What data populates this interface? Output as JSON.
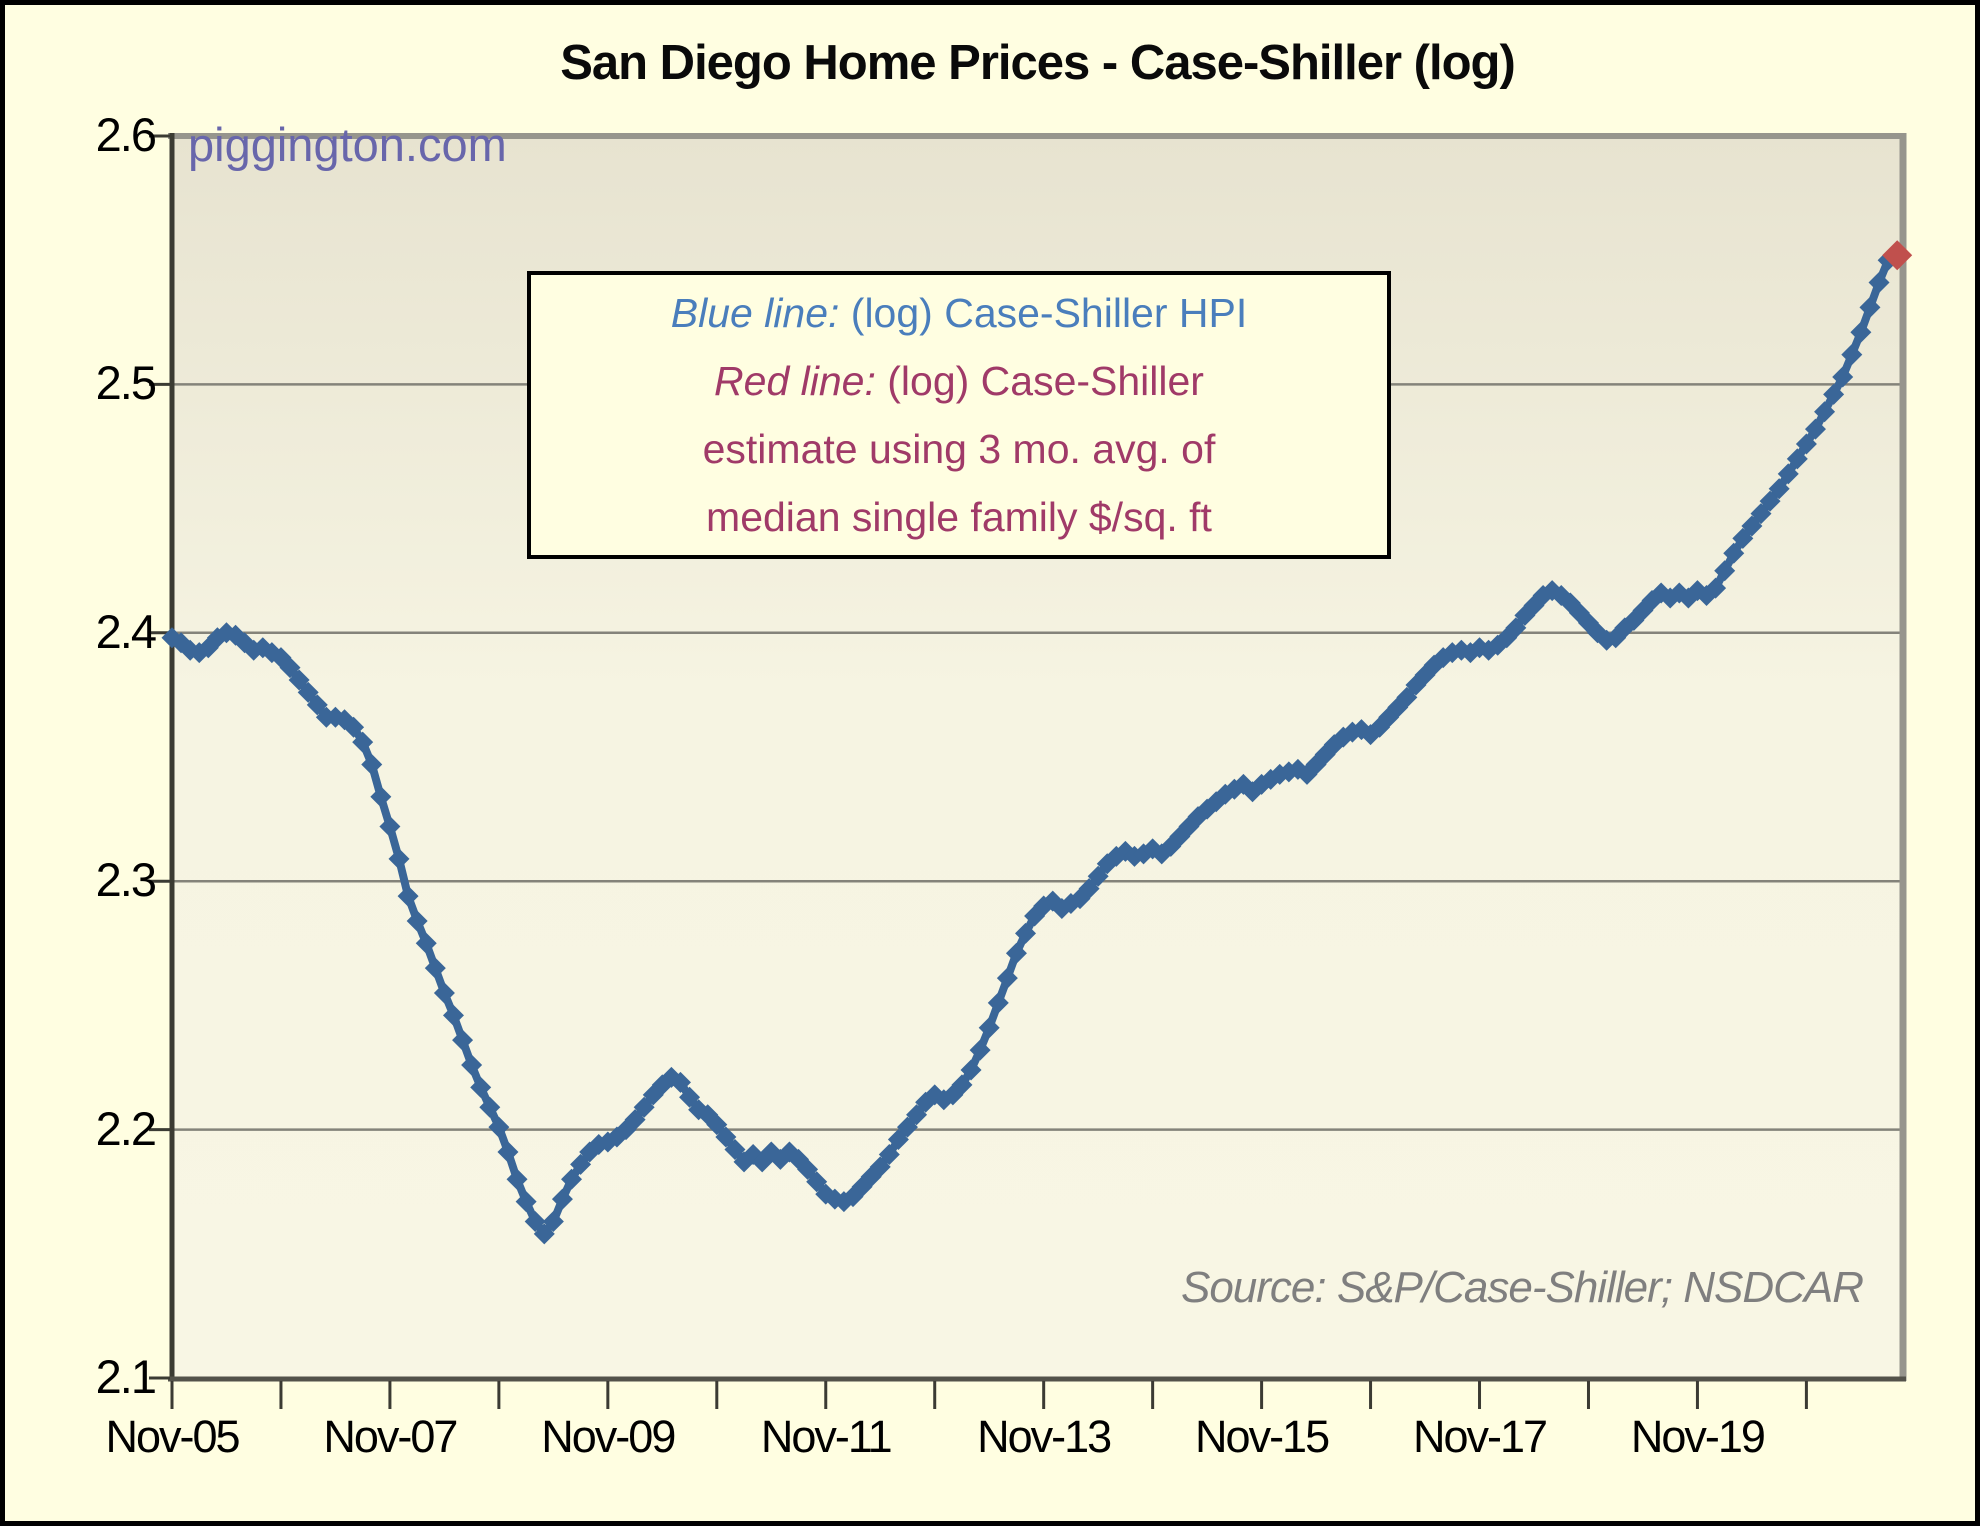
{
  "title": "San Diego Home Prices - Case-Shiller (log)",
  "watermark": "piggington.com",
  "source_note": "Source: S&P/Case-Shiller; NSDCAR",
  "legend": {
    "blue_label": "Blue line:",
    "blue_text": " (log) Case-Shiller HPI",
    "red_label": "Red line:",
    "red_text": " (log) Case-Shiller",
    "red_line2": "estimate using 3 mo. avg. of",
    "red_line3": "median single family $/sq. ft"
  },
  "colors": {
    "page_bg": "#fffee1",
    "plot_bg_top": "#e7e3d0",
    "plot_bg_mid": "#f6f4e2",
    "plot_bg_bottom": "#f8f6e4",
    "grid": "#84837a",
    "axis_dark": "#3b3b33",
    "axis_light": "#96958d",
    "axis_bottom": "#53524a",
    "blue_line": "#3a6698",
    "red_marker": "#c0504d",
    "blue_text": "#4a7ebc",
    "red_text": "#a03a68",
    "watermark": "#6866ab",
    "source": "#7f7f7f"
  },
  "chart_data": {
    "type": "line",
    "title": "San Diego Home Prices - Case-Shiller (log)",
    "xlabel": "",
    "ylabel": "",
    "ylim": [
      2.1,
      2.6
    ],
    "y_ticks": [
      2.6,
      2.5,
      2.4,
      2.3,
      2.2,
      2.1
    ],
    "grid": "horizontal",
    "x_unit": "months since Nov-2005",
    "x_minor_tick_months": [
      0,
      12,
      24,
      36,
      48,
      60,
      72,
      84,
      96,
      108,
      120,
      132,
      144,
      156,
      168,
      180
    ],
    "x_label_months": [
      0,
      24,
      48,
      72,
      96,
      120,
      144,
      168
    ],
    "x_tick_labels": [
      "Nov-05",
      "Nov-07",
      "Nov-09",
      "Nov-11",
      "Nov-13",
      "Nov-15",
      "Nov-17",
      "Nov-19"
    ],
    "legend_position": "top-center-box",
    "series": [
      {
        "name": "(log) Case-Shiller HPI",
        "color": "#3a6698",
        "marker": "diamond",
        "start_month": 0,
        "values": [
          2.398,
          2.396,
          2.393,
          2.392,
          2.394,
          2.398,
          2.4,
          2.399,
          2.396,
          2.393,
          2.394,
          2.392,
          2.39,
          2.386,
          2.381,
          2.376,
          2.371,
          2.366,
          2.366,
          2.365,
          2.362,
          2.356,
          2.347,
          2.334,
          2.322,
          2.309,
          2.294,
          2.284,
          2.275,
          2.265,
          2.255,
          2.246,
          2.236,
          2.226,
          2.217,
          2.209,
          2.201,
          2.191,
          2.18,
          2.171,
          2.163,
          2.158,
          2.163,
          2.172,
          2.18,
          2.186,
          2.191,
          2.194,
          2.195,
          2.197,
          2.2,
          2.204,
          2.209,
          2.214,
          2.218,
          2.221,
          2.219,
          2.213,
          2.208,
          2.206,
          2.202,
          2.197,
          2.192,
          2.187,
          2.19,
          2.187,
          2.191,
          2.188,
          2.191,
          2.188,
          2.184,
          2.179,
          2.174,
          2.172,
          2.171,
          2.173,
          2.177,
          2.181,
          2.185,
          2.19,
          2.196,
          2.201,
          2.206,
          2.211,
          2.214,
          2.212,
          2.214,
          2.218,
          2.224,
          2.232,
          2.241,
          2.251,
          2.261,
          2.271,
          2.279,
          2.286,
          2.29,
          2.292,
          2.289,
          2.291,
          2.293,
          2.297,
          2.302,
          2.307,
          2.31,
          2.312,
          2.31,
          2.311,
          2.313,
          2.311,
          2.314,
          2.318,
          2.322,
          2.326,
          2.329,
          2.332,
          2.335,
          2.337,
          2.339,
          2.336,
          2.339,
          2.341,
          2.343,
          2.344,
          2.345,
          2.343,
          2.347,
          2.351,
          2.355,
          2.358,
          2.36,
          2.361,
          2.359,
          2.362,
          2.366,
          2.37,
          2.374,
          2.379,
          2.383,
          2.387,
          2.39,
          2.392,
          2.393,
          2.392,
          2.394,
          2.393,
          2.395,
          2.398,
          2.402,
          2.407,
          2.411,
          2.415,
          2.417,
          2.415,
          2.412,
          2.408,
          2.404,
          2.4,
          2.397,
          2.398,
          2.402,
          2.405,
          2.409,
          2.413,
          2.416,
          2.414,
          2.416,
          2.414,
          2.417,
          2.415,
          2.418,
          2.425,
          2.432,
          2.438,
          2.443,
          2.448,
          2.453,
          2.458,
          2.464,
          2.47,
          2.476,
          2.482,
          2.489,
          2.496,
          2.503,
          2.512,
          2.521,
          2.531,
          2.541,
          2.55
        ]
      },
      {
        "name": "(log) Case-Shiller estimate using 3 mo. avg. of median single family $/sq. ft",
        "color": "#c0504d",
        "marker": "diamond",
        "visible_points": [
          {
            "month": 190,
            "value": 2.552
          }
        ]
      }
    ]
  }
}
